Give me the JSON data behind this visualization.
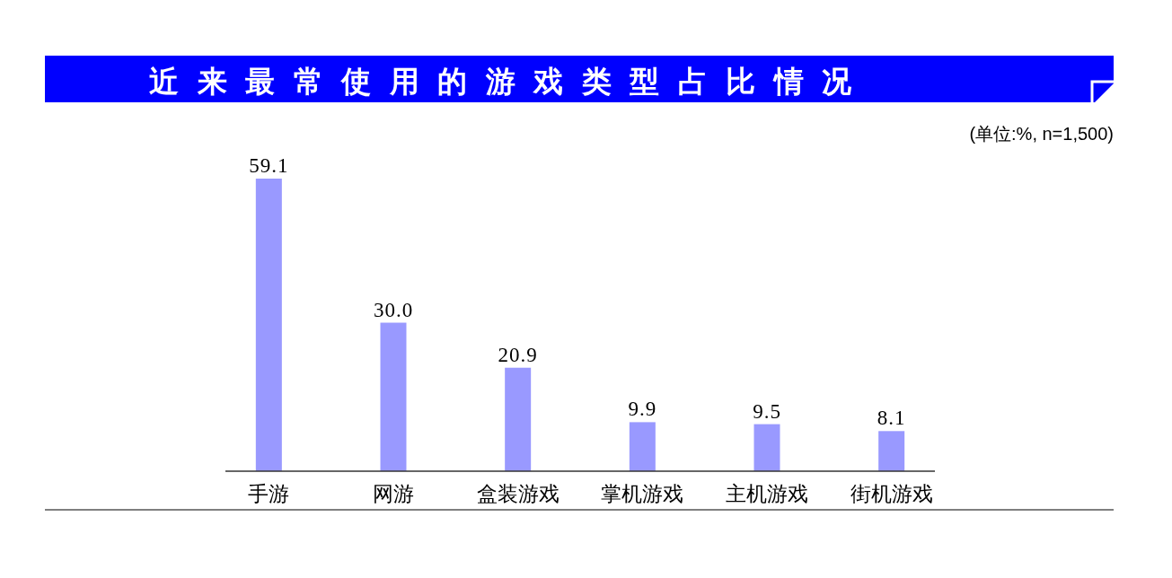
{
  "chart_data": {
    "type": "bar",
    "title": "近来最常使用的游戏类型占比情况",
    "annotations": [
      "(单位:%, n=1,500)"
    ],
    "categories": [
      "手游",
      "网游",
      "盒装游戏",
      "掌机游戏",
      "主机游戏",
      "街机游戏"
    ],
    "values": [
      59.1,
      30.0,
      20.9,
      9.9,
      9.5,
      8.1
    ],
    "color": "#9999ff",
    "value_labels": [
      "59.1",
      "30.0",
      "20.9",
      "9.9",
      "9.5",
      "8.1"
    ]
  }
}
